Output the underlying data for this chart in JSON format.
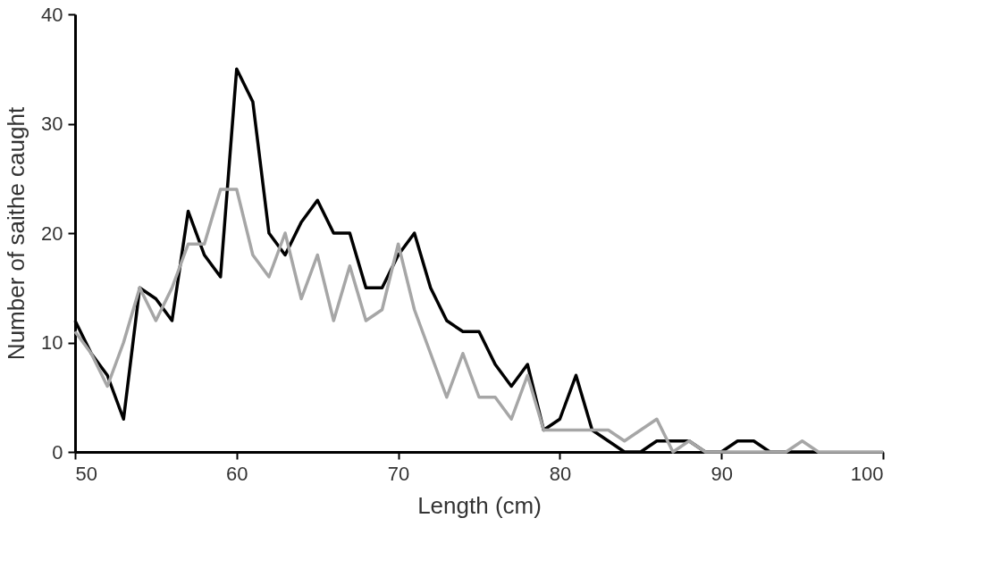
{
  "chart_data": {
    "type": "line",
    "xlabel": "Length (cm)",
    "ylabel": "Number of saithe caught",
    "xlim": [
      50,
      100
    ],
    "ylim": [
      0,
      40
    ],
    "xticks": [
      50,
      60,
      70,
      80,
      90,
      100
    ],
    "yticks": [
      0,
      10,
      20,
      30,
      40
    ],
    "grid": false,
    "legend": false,
    "marker": "none",
    "line_style": "solid",
    "series": [
      {
        "color": "#000000",
        "x": [
          50,
          51,
          52,
          53,
          54,
          55,
          56,
          57,
          58,
          59,
          60,
          61,
          62,
          63,
          64,
          65,
          66,
          67,
          68,
          69,
          70,
          71,
          72,
          73,
          74,
          75,
          76,
          77,
          78,
          79,
          80,
          81,
          82,
          83,
          84,
          85,
          86,
          87,
          88,
          89,
          90,
          91,
          92,
          93,
          94,
          95,
          96
        ],
        "values": [
          12,
          9,
          7,
          3,
          15,
          14,
          12,
          22,
          18,
          16,
          35,
          32,
          20,
          18,
          21,
          23,
          20,
          20,
          15,
          15,
          18,
          20,
          15,
          12,
          11,
          11,
          8,
          6,
          8,
          2,
          3,
          7,
          2,
          1,
          0,
          0,
          1,
          1,
          1,
          0,
          0,
          1,
          1,
          0,
          0,
          0,
          0
        ]
      },
      {
        "color": "#a6a6a6",
        "x": [
          50,
          51,
          52,
          53,
          54,
          55,
          56,
          57,
          58,
          59,
          60,
          61,
          62,
          63,
          64,
          65,
          66,
          67,
          68,
          69,
          70,
          71,
          72,
          73,
          74,
          75,
          76,
          77,
          78,
          79,
          80,
          81,
          82,
          83,
          84,
          85,
          86,
          87,
          88,
          89,
          90,
          91,
          92,
          93,
          94,
          95,
          96,
          97,
          98,
          99,
          100
        ],
        "values": [
          11,
          9,
          6,
          10,
          15,
          12,
          15,
          19,
          19,
          24,
          24,
          18,
          16,
          20,
          14,
          18,
          12,
          17,
          12,
          13,
          19,
          13,
          9,
          5,
          9,
          5,
          5,
          3,
          7,
          2,
          2,
          2,
          2,
          2,
          1,
          2,
          3,
          0,
          1,
          0,
          0,
          0,
          0,
          0,
          0,
          1,
          0,
          0,
          0,
          0,
          0
        ]
      }
    ]
  }
}
